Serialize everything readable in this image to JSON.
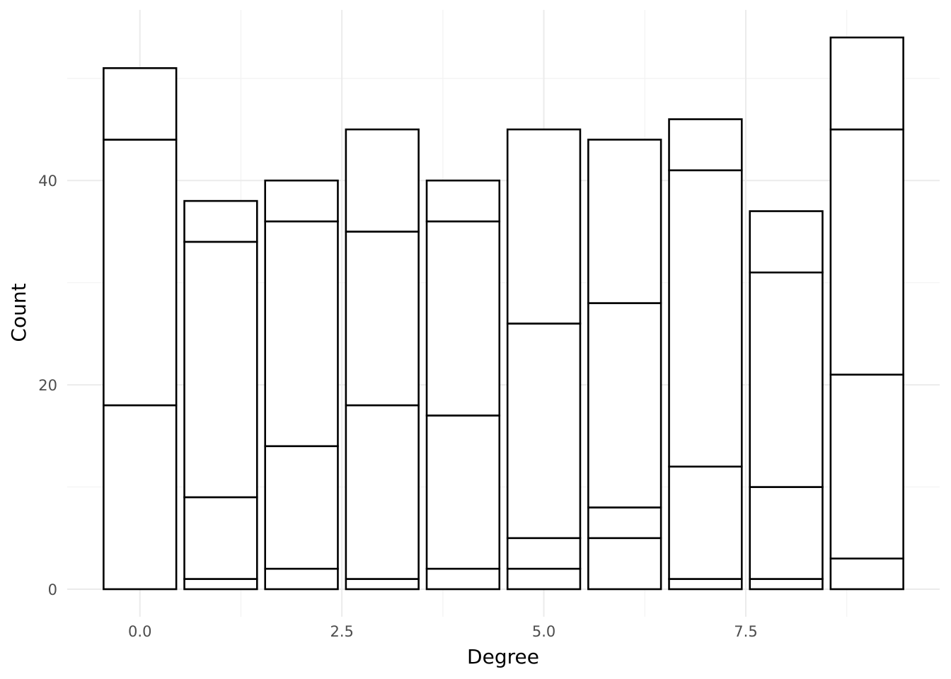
{
  "chart_data": {
    "type": "bar",
    "stacked": true,
    "title": "",
    "xlabel": "Degree",
    "ylabel": "Count",
    "xlim": [
      -0.9,
      9.9
    ],
    "ylim": [
      -2.7,
      56.7
    ],
    "x_ticks": [
      0.0,
      2.5,
      5.0,
      7.5
    ],
    "x_tick_labels": [
      "0.0",
      "2.5",
      "5.0",
      "7.5"
    ],
    "y_ticks": [
      0,
      20,
      40
    ],
    "y_tick_labels": [
      "0",
      "20",
      "40"
    ],
    "grid": true,
    "legend": "none",
    "bar_width": 0.9,
    "fill_color": "#ffffff",
    "outline_color": "#000000",
    "categories": [
      0,
      1,
      2,
      3,
      4,
      5,
      6,
      7,
      8,
      9
    ],
    "stack_boundaries": [
      [
        18,
        44,
        51
      ],
      [
        1,
        9,
        34,
        38
      ],
      [
        2,
        14,
        36,
        40
      ],
      [
        1,
        18,
        35,
        45
      ],
      [
        2,
        17,
        36,
        40
      ],
      [
        2,
        5,
        26,
        45
      ],
      [
        5,
        8,
        28,
        44
      ],
      [
        1,
        12,
        41,
        46
      ],
      [
        1,
        10,
        31,
        37
      ],
      [
        3,
        21,
        45,
        54
      ]
    ],
    "totals": [
      51,
      38,
      40,
      45,
      40,
      45,
      44,
      46,
      37,
      54
    ]
  }
}
